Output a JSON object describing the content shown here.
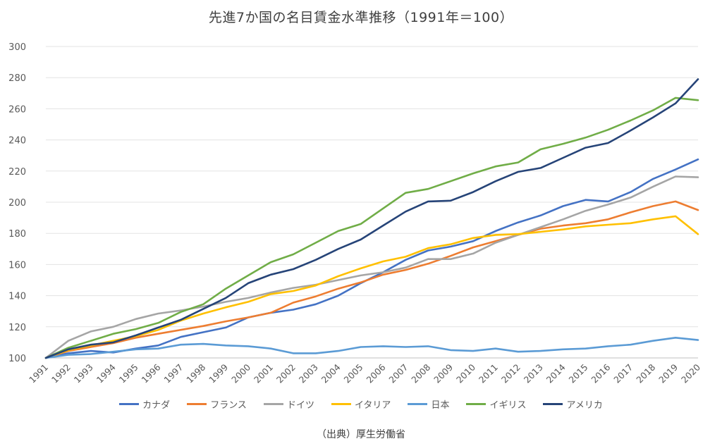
{
  "chart_data": {
    "type": "line",
    "title": "先進7か国の名目賃金水準推移（1991年＝100）",
    "xlabel": "",
    "ylabel": "",
    "ylim": [
      100,
      300
    ],
    "yticks": [
      100,
      120,
      140,
      160,
      180,
      200,
      220,
      240,
      260,
      280,
      300
    ],
    "grid": true,
    "legend_position": "bottom",
    "x": [
      "1991",
      "1992",
      "1993",
      "1994",
      "1995",
      "1996",
      "1997",
      "1998",
      "1999",
      "2000",
      "2001",
      "2002",
      "2003",
      "2004",
      "2005",
      "2006",
      "2007",
      "2008",
      "2009",
      "2010",
      "2011",
      "2012",
      "2013",
      "2014",
      "2015",
      "2016",
      "2017",
      "2018",
      "2019",
      "2020"
    ],
    "series": [
      {
        "name": "カナダ",
        "color": "#4472c4",
        "values": [
          100,
          103,
          104.5,
          103.5,
          106,
          108,
          113.5,
          116.5,
          119.5,
          126,
          129,
          131,
          134.5,
          140,
          148,
          155,
          163,
          169,
          171.5,
          175,
          181.5,
          187,
          191.5,
          197.5,
          201.5,
          200.5,
          206.5,
          215,
          221,
          227.5
        ]
      },
      {
        "name": "フランス",
        "color": "#ed7d31",
        "values": [
          100,
          104.5,
          107,
          109.5,
          113,
          115.5,
          118,
          120.5,
          123.5,
          126,
          129,
          135.5,
          139.5,
          144.5,
          148.5,
          153.5,
          156.5,
          160.5,
          165.5,
          171,
          175,
          179,
          183,
          185,
          186.5,
          189,
          193.5,
          197.5,
          200.5,
          195
        ]
      },
      {
        "name": "ドイツ",
        "color": "#a5a5a5",
        "values": [
          100,
          111,
          117,
          120,
          125,
          128.5,
          130.5,
          133,
          136,
          138.5,
          142,
          145,
          147,
          150,
          153,
          155,
          158,
          163.5,
          163.5,
          167,
          174,
          179,
          184,
          189,
          194.5,
          198.5,
          203,
          210,
          216.5,
          216
        ]
      },
      {
        "name": "イタリア",
        "color": "#ffc000",
        "values": [
          100,
          105,
          108,
          111,
          114,
          118,
          124,
          128.5,
          132.5,
          136,
          141,
          143,
          146.5,
          152.5,
          157.5,
          162,
          165,
          170.5,
          173,
          177,
          179,
          179.5,
          181,
          182.5,
          184.5,
          185.5,
          186.5,
          189,
          191,
          179.5
        ]
      },
      {
        "name": "日本",
        "color": "#5b9bd5",
        "values": [
          100,
          102,
          102.5,
          104,
          105.5,
          106,
          108.5,
          109,
          108,
          107.5,
          106,
          103,
          103,
          104.5,
          107,
          107.5,
          107,
          107.5,
          105,
          104.5,
          106,
          104,
          104.5,
          105.5,
          106,
          107.5,
          108.5,
          111,
          113,
          111.5
        ]
      },
      {
        "name": "イギリス",
        "color": "#70ad47",
        "values": [
          100,
          106.5,
          111,
          115.5,
          118.5,
          122.5,
          129.5,
          134.5,
          144.5,
          153,
          161.5,
          166.5,
          174,
          181.5,
          186,
          196,
          206,
          208.5,
          213.5,
          218.5,
          223,
          225.5,
          234,
          237.5,
          241.5,
          246.5,
          252.5,
          259,
          267,
          265.5
        ]
      },
      {
        "name": "アメリカ",
        "color": "#264478",
        "values": [
          100,
          105.5,
          108.5,
          110,
          114.5,
          119.5,
          124.5,
          131.5,
          138.5,
          148,
          153.5,
          157,
          163,
          170,
          176,
          185,
          194,
          200.5,
          201,
          206.5,
          213.5,
          219.5,
          222,
          228.5,
          235,
          238,
          246,
          254.5,
          263.5,
          279
        ]
      }
    ]
  },
  "source_note": "（出典）厚生労働省"
}
